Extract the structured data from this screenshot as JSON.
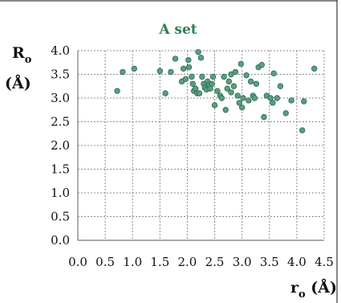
{
  "chart_data": {
    "type": "scatter",
    "title": "A set",
    "xlabel": {
      "main": "r",
      "sub": "o",
      "unit": " (Å)"
    },
    "ylabel": {
      "main": "R",
      "sub": "o",
      "unit": "(Å)"
    },
    "xlim": [
      0.0,
      4.5
    ],
    "ylim": [
      0.0,
      4.0
    ],
    "xticks": [
      "0.0",
      "0.5",
      "1.0",
      "1.5",
      "2.0",
      "2.5",
      "3.0",
      "3.5",
      "4.0",
      "4.5"
    ],
    "yticks": [
      "0.0",
      "0.5",
      "1.0",
      "1.5",
      "2.0",
      "2.5",
      "3.0",
      "3.5",
      "4.0"
    ],
    "grid": true,
    "marker_color": "#5a9e7e",
    "marker_edge": "#2f6b50",
    "points": [
      {
        "x": 0.72,
        "y": 3.15
      },
      {
        "x": 0.82,
        "y": 3.55
      },
      {
        "x": 1.03,
        "y": 3.62
      },
      {
        "x": 1.5,
        "y": 3.57
      },
      {
        "x": 1.6,
        "y": 3.1
      },
      {
        "x": 1.7,
        "y": 3.55
      },
      {
        "x": 1.78,
        "y": 3.83
      },
      {
        "x": 1.9,
        "y": 3.35
      },
      {
        "x": 1.93,
        "y": 3.62
      },
      {
        "x": 1.97,
        "y": 3.4
      },
      {
        "x": 2.02,
        "y": 3.8
      },
      {
        "x": 2.03,
        "y": 3.65
      },
      {
        "x": 2.08,
        "y": 3.45
      },
      {
        "x": 2.1,
        "y": 3.3
      },
      {
        "x": 2.12,
        "y": 3.15
      },
      {
        "x": 2.15,
        "y": 3.2
      },
      {
        "x": 2.18,
        "y": 3.1
      },
      {
        "x": 2.2,
        "y": 3.97
      },
      {
        "x": 2.22,
        "y": 3.1
      },
      {
        "x": 2.25,
        "y": 3.85
      },
      {
        "x": 2.27,
        "y": 3.45
      },
      {
        "x": 2.3,
        "y": 3.3
      },
      {
        "x": 2.32,
        "y": 3.22
      },
      {
        "x": 2.35,
        "y": 3.18
      },
      {
        "x": 2.37,
        "y": 3.35
      },
      {
        "x": 2.4,
        "y": 3.28
      },
      {
        "x": 2.42,
        "y": 3.2
      },
      {
        "x": 2.45,
        "y": 3.3
      },
      {
        "x": 2.47,
        "y": 3.45
      },
      {
        "x": 2.5,
        "y": 2.85
      },
      {
        "x": 2.55,
        "y": 3.15
      },
      {
        "x": 2.6,
        "y": 3.05
      },
      {
        "x": 2.63,
        "y": 3.0
      },
      {
        "x": 2.67,
        "y": 3.45
      },
      {
        "x": 2.7,
        "y": 2.75
      },
      {
        "x": 2.73,
        "y": 3.2
      },
      {
        "x": 2.76,
        "y": 3.35
      },
      {
        "x": 2.8,
        "y": 3.5
      },
      {
        "x": 2.8,
        "y": 3.12
      },
      {
        "x": 2.85,
        "y": 3.25
      },
      {
        "x": 2.88,
        "y": 3.55
      },
      {
        "x": 2.92,
        "y": 3.05
      },
      {
        "x": 2.95,
        "y": 2.9
      },
      {
        "x": 2.98,
        "y": 3.72
      },
      {
        "x": 3.0,
        "y": 2.8
      },
      {
        "x": 3.02,
        "y": 3.0
      },
      {
        "x": 3.08,
        "y": 3.48
      },
      {
        "x": 3.12,
        "y": 2.95
      },
      {
        "x": 3.16,
        "y": 3.35
      },
      {
        "x": 3.2,
        "y": 3.05
      },
      {
        "x": 3.23,
        "y": 3.0
      },
      {
        "x": 3.26,
        "y": 3.3
      },
      {
        "x": 3.3,
        "y": 3.65
      },
      {
        "x": 3.36,
        "y": 3.7
      },
      {
        "x": 3.4,
        "y": 2.6
      },
      {
        "x": 3.45,
        "y": 3.05
      },
      {
        "x": 3.52,
        "y": 3.0
      },
      {
        "x": 3.56,
        "y": 2.9
      },
      {
        "x": 3.58,
        "y": 3.52
      },
      {
        "x": 3.64,
        "y": 3.0
      },
      {
        "x": 3.7,
        "y": 3.25
      },
      {
        "x": 3.8,
        "y": 2.68
      },
      {
        "x": 3.9,
        "y": 2.95
      },
      {
        "x": 4.1,
        "y": 2.32
      },
      {
        "x": 4.13,
        "y": 2.93
      },
      {
        "x": 4.32,
        "y": 3.62
      }
    ]
  }
}
